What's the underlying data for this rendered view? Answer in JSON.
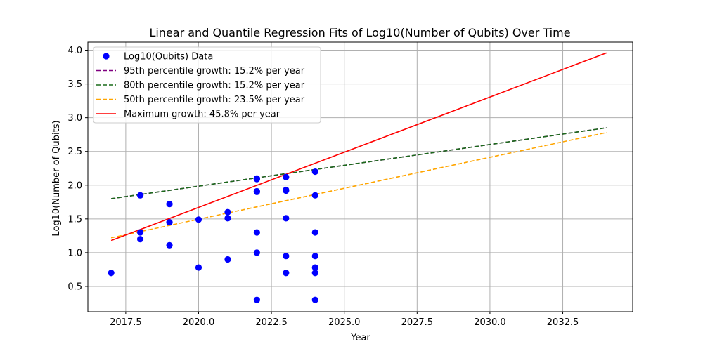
{
  "chart_data": {
    "type": "scatter",
    "title": "Linear and Quantile Regression Fits of Log10(Number of Qubits) Over Time",
    "xlabel": "Year",
    "ylabel": "Log10(Number of Qubits)",
    "xlim": [
      2016.2,
      2034.9
    ],
    "ylim": [
      0.125,
      4.12
    ],
    "xticks": [
      2017.5,
      2020.0,
      2022.5,
      2025.0,
      2027.5,
      2030.0,
      2032.5
    ],
    "xtick_labels": [
      "2017.5",
      "2020.0",
      "2022.5",
      "2025.0",
      "2027.5",
      "2030.0",
      "2032.5"
    ],
    "yticks": [
      0.5,
      1.0,
      1.5,
      2.0,
      2.5,
      3.0,
      3.5,
      4.0
    ],
    "ytick_labels": [
      "0.5",
      "1.0",
      "1.5",
      "2.0",
      "2.5",
      "3.0",
      "3.5",
      "4.0"
    ],
    "grid": true,
    "legend_position": "top-left",
    "scatter": {
      "name": "Log10(Qubits) Data",
      "color": "#0000ff",
      "points": [
        [
          2017,
          0.7
        ],
        [
          2018,
          1.85
        ],
        [
          2018,
          1.3
        ],
        [
          2018,
          1.2
        ],
        [
          2019,
          1.72
        ],
        [
          2019,
          1.45
        ],
        [
          2019,
          1.11
        ],
        [
          2020,
          1.49
        ],
        [
          2020,
          0.78
        ],
        [
          2021,
          1.6
        ],
        [
          2021,
          1.51
        ],
        [
          2021,
          0.9
        ],
        [
          2022,
          2.1
        ],
        [
          2022,
          2.09
        ],
        [
          2022,
          1.91
        ],
        [
          2022,
          1.9
        ],
        [
          2022,
          1.3
        ],
        [
          2022,
          1.0
        ],
        [
          2022,
          0.3
        ],
        [
          2023,
          2.12
        ],
        [
          2023,
          1.93
        ],
        [
          2023,
          1.92
        ],
        [
          2023,
          1.51
        ],
        [
          2023,
          0.95
        ],
        [
          2023,
          0.7
        ],
        [
          2024,
          2.2
        ],
        [
          2024,
          1.85
        ],
        [
          2024,
          1.3
        ],
        [
          2024,
          0.95
        ],
        [
          2024,
          0.78
        ],
        [
          2024,
          0.7
        ],
        [
          2024,
          0.3
        ]
      ]
    },
    "lines": [
      {
        "name": "95th percentile growth: 15.2% per year",
        "color": "#800080",
        "dash": "dashed",
        "x": [
          2017,
          2034
        ],
        "y": [
          1.8,
          2.85
        ]
      },
      {
        "name": "80th percentile growth: 15.2% per year",
        "color": "#1a6b1a",
        "dash": "dashed",
        "x": [
          2017,
          2034
        ],
        "y": [
          1.8,
          2.85
        ]
      },
      {
        "name": "50th percentile growth: 23.5% per year",
        "color": "#ffa500",
        "dash": "dashed",
        "x": [
          2017,
          2034
        ],
        "y": [
          1.22,
          2.78
        ]
      },
      {
        "name": "Maximum growth: 45.8% per year",
        "color": "#ff0000",
        "dash": "solid",
        "x": [
          2017,
          2034
        ],
        "y": [
          1.18,
          3.96
        ]
      }
    ]
  }
}
